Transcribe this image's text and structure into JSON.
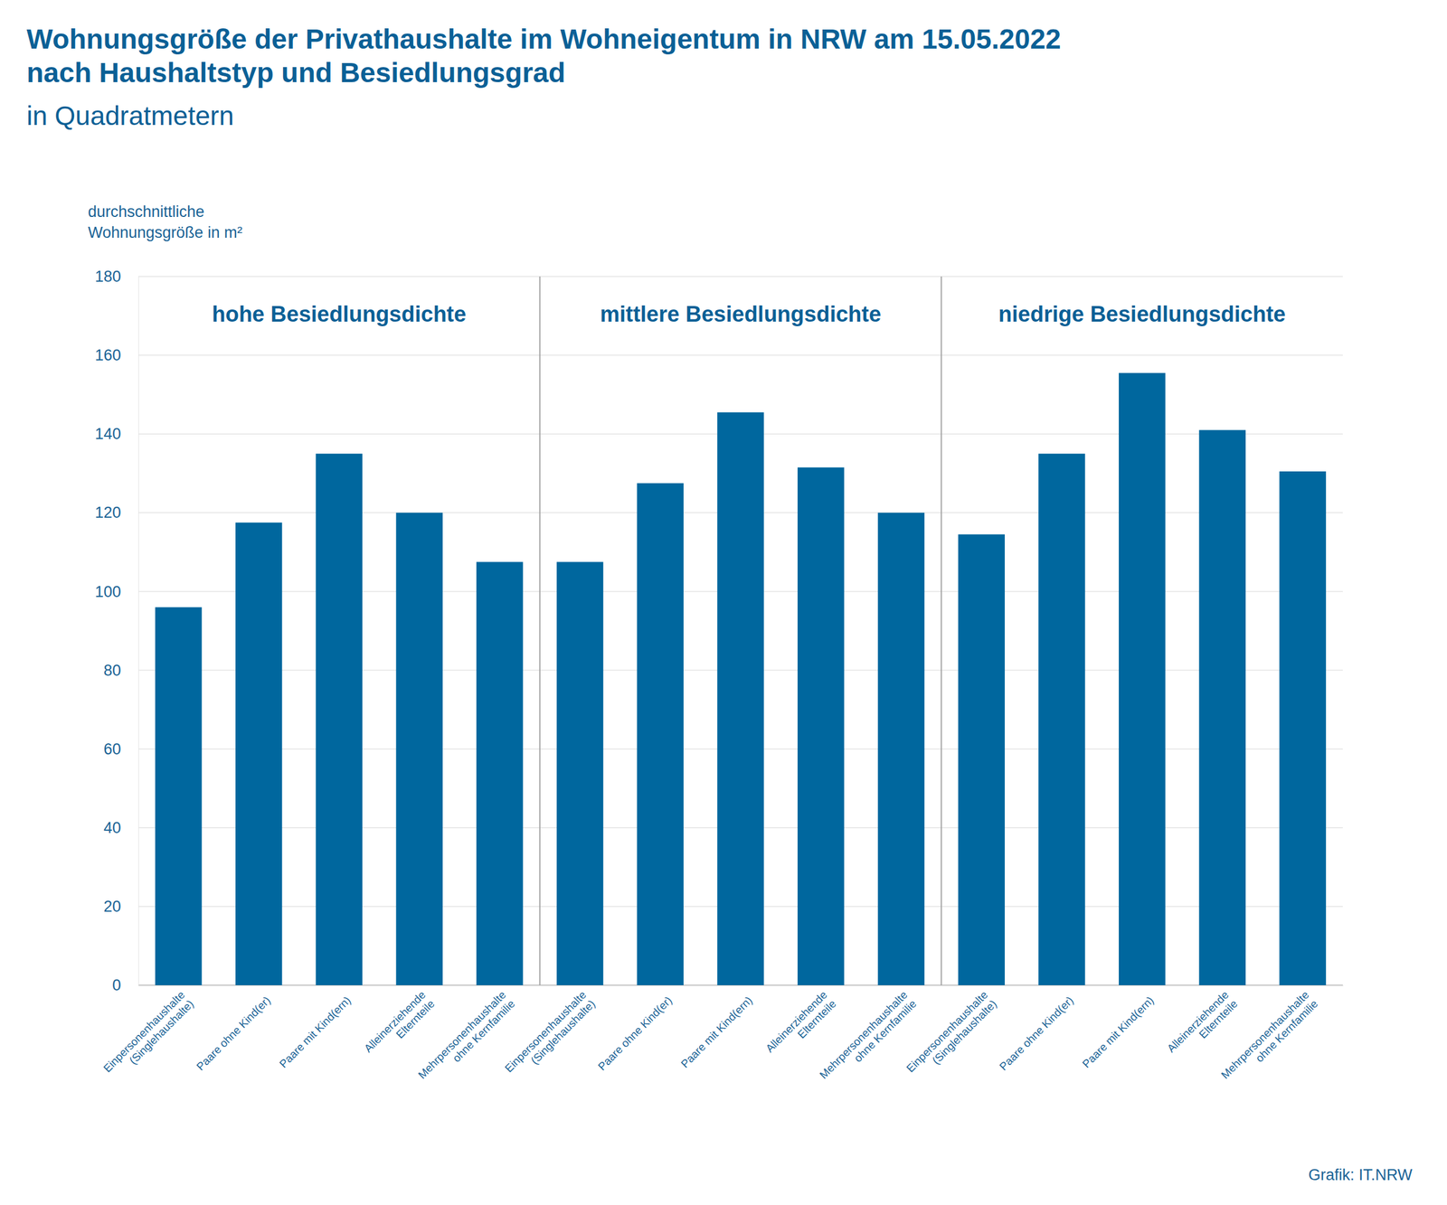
{
  "chart_data": {
    "type": "bar",
    "title": "Wohnungsgröße der Privathaushalte im Wohneigentum in NRW am 15.05.2022\nnach Haushaltstyp und Besiedlungsgrad",
    "subtitle": "in Quadratmetern",
    "y_label": "durchschnittliche\nWohnungsgröße in m²",
    "source": "Grafik: IT.NRW",
    "categories": [
      "Einpersonenhaushalte\n(Singlehaushalte)",
      "Paare ohne Kind(er)",
      "Paare mit Kind(ern)",
      "Alleinerziehende\nElternteile",
      "Mehrpersonenhaushalte\nohne Kernfamilie"
    ],
    "series": [
      {
        "name": "hohe Besiedlungsdichte",
        "values": [
          96,
          117.5,
          135,
          120,
          107.5
        ]
      },
      {
        "name": "mittlere Besiedlungsdichte",
        "values": [
          107.5,
          127.5,
          145.5,
          131.5,
          120
        ]
      },
      {
        "name": "niedrige Besiedlungsdichte",
        "values": [
          114.5,
          135,
          155.5,
          141,
          130.5
        ]
      }
    ],
    "color": "#00679e",
    "ylim": [
      0,
      180
    ],
    "yticks": [
      0,
      20,
      40,
      60,
      80,
      100,
      120,
      140,
      160,
      180
    ],
    "grid": true
  }
}
